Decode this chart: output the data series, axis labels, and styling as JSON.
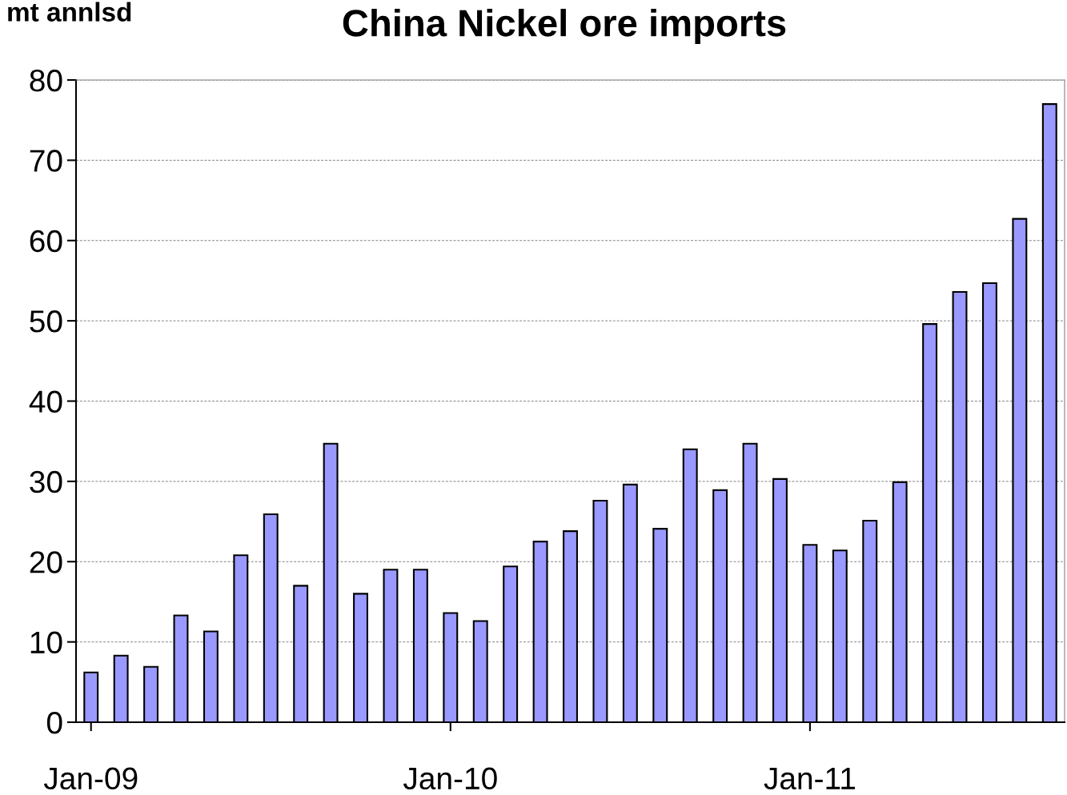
{
  "chart_data": {
    "type": "bar",
    "title": "China Nickel ore imports",
    "ylabel": "mt annlsd",
    "categories": [
      "Jan-09",
      null,
      null,
      null,
      null,
      null,
      null,
      null,
      null,
      null,
      null,
      null,
      "Jan-10",
      null,
      null,
      null,
      null,
      null,
      null,
      null,
      null,
      null,
      null,
      null,
      "Jan-11",
      null,
      null,
      null,
      null,
      null,
      null,
      null,
      null
    ],
    "values": [
      6.2,
      8.3,
      6.9,
      13.3,
      11.3,
      20.8,
      25.9,
      17.0,
      34.7,
      16.0,
      19.0,
      19.0,
      13.6,
      12.6,
      19.4,
      22.5,
      23.8,
      27.6,
      29.6,
      24.1,
      34.0,
      28.9,
      34.7,
      30.3,
      22.1,
      21.4,
      25.1,
      29.9,
      49.6,
      53.6,
      54.7,
      62.7,
      77.0
    ],
    "color": "#9999ff",
    "ylim": [
      0,
      80
    ],
    "yticks": [
      0,
      10,
      20,
      30,
      40,
      50,
      60,
      70,
      80
    ],
    "grid": "y"
  }
}
